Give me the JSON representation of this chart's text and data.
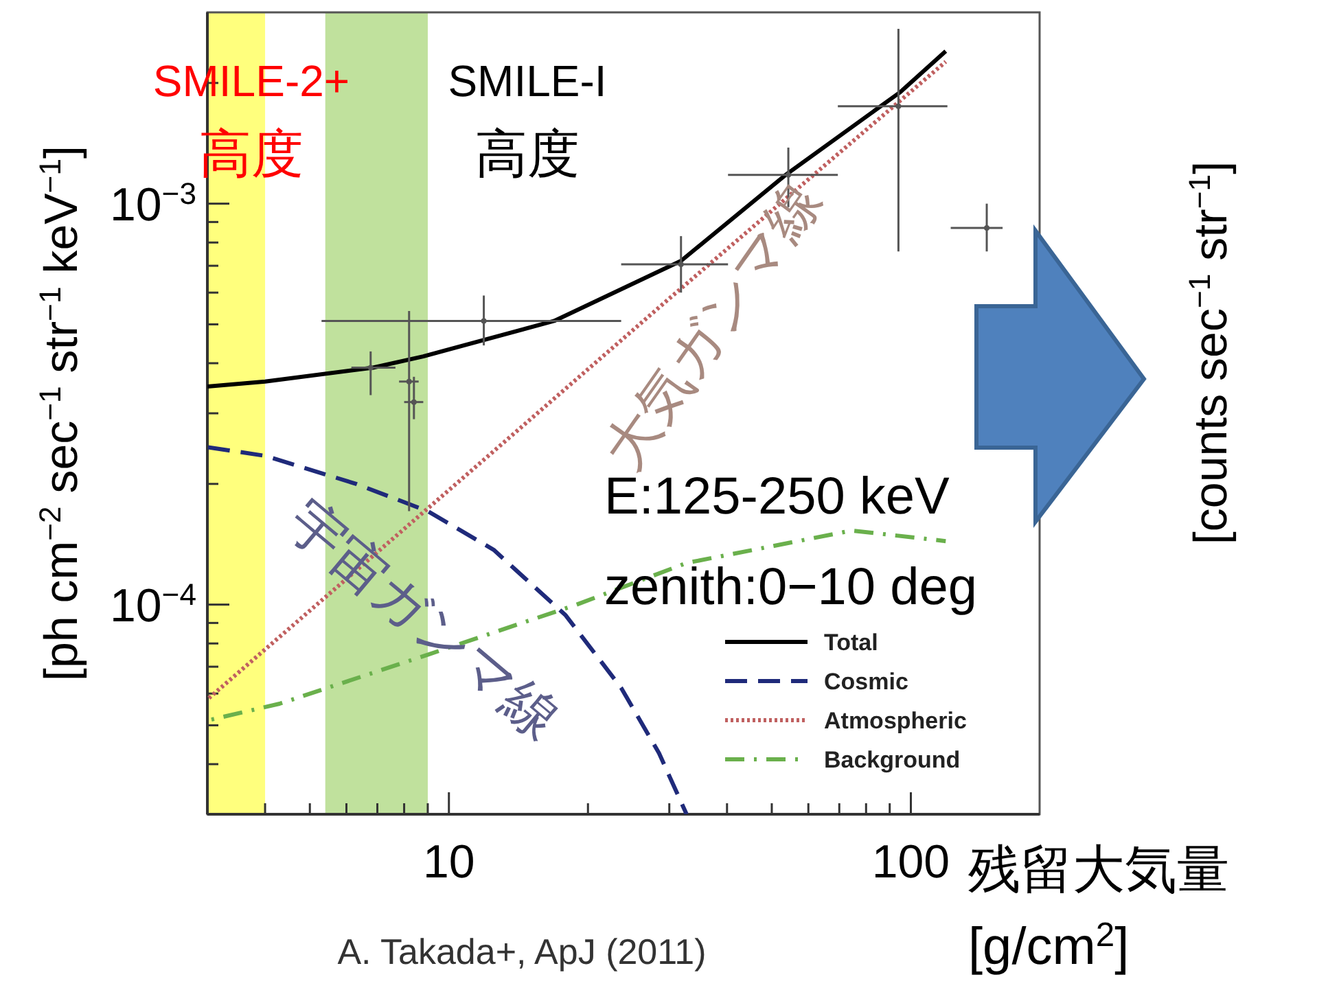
{
  "chart_data": [
    {
      "type": "line",
      "xlabel": "残留大気量 [g/cm$^{2}$]",
      "ylabel": "[ph cm$^{−2}$ sec$^{−1}$ str$^{−1}$ keV$^{−1}$]",
      "log": "xy",
      "xlim": [
        3,
        190
      ],
      "ylim": [
        3e-05,
        0.003
      ],
      "xticks": [
        {
          "value": 4,
          "label": null
        },
        {
          "value": 5,
          "label": null
        },
        {
          "value": 6,
          "label": null
        },
        {
          "value": 7,
          "label": null
        },
        {
          "value": 8,
          "label": null
        },
        {
          "value": 9,
          "label": null
        },
        10,
        {
          "value": 20,
          "label": null
        },
        {
          "value": 30,
          "label": null
        },
        {
          "value": 40,
          "label": null
        },
        {
          "value": 50,
          "label": null
        },
        {
          "value": 60,
          "label": null
        },
        {
          "value": 70,
          "label": null
        },
        {
          "value": 80,
          "label": null
        },
        {
          "value": 90,
          "label": null
        },
        100
      ],
      "yticks": [
        {
          "value": 4e-05,
          "label": null
        },
        {
          "value": 5e-05,
          "label": null
        },
        {
          "value": 6e-05,
          "label": null
        },
        {
          "value": 7e-05,
          "label": null
        },
        {
          "value": 8e-05,
          "label": null
        },
        {
          "value": 9e-05,
          "label": null
        },
        {
          "value": 0.0001,
          "label": "10$^{−4}$"
        },
        {
          "value": 0.0002,
          "label": null
        },
        {
          "value": 0.0003,
          "label": null
        },
        {
          "value": 0.0004,
          "label": null
        },
        {
          "value": 0.0005,
          "label": null
        },
        {
          "value": 0.0006,
          "label": null
        },
        {
          "value": 0.0007,
          "label": null
        },
        {
          "value": 0.0008,
          "label": null
        },
        {
          "value": 0.0009,
          "label": null
        },
        {
          "value": 0.001,
          "label": "10$^{−3}$"
        },
        {
          "value": 0.002,
          "label": null
        }
      ],
      "grid": false,
      "legend": "bottom right",
      "series": [
        {
          "name": "Total",
          "color": "#000000",
          "line_style": "solid",
          "x": [
            3,
            4,
            6.85,
            8.8,
            16.9,
            31.8,
            53.6,
            95,
            119
          ],
          "values": [
            0.00035,
            0.00036,
            0.00039,
            0.000416,
            0.00051,
            0.00072,
            0.00118,
            0.0019,
            0.0024
          ]
        },
        {
          "name": "Cosmic",
          "color": "#1f2a7a",
          "line_style": "dashed",
          "x": [
            3,
            4,
            6.3,
            9,
            12.5,
            17.9,
            23.6,
            28.5,
            32.7
          ],
          "values": [
            0.000247,
            0.000235,
            0.0002,
            0.000171,
            0.000137,
            9.4e-05,
            6.2e-05,
            4.26e-05,
            3e-05
          ]
        },
        {
          "name": "Atmospheric",
          "color": "#c06060",
          "line_style": "dotted",
          "x": [
            3,
            10,
            30,
            119
          ],
          "values": [
            5.8e-05,
            0.000193,
            0.00058,
            0.00226
          ]
        },
        {
          "name": "Background",
          "color": "#6ab04c",
          "line_style": "dashdot",
          "x": [
            3,
            4.3,
            9,
            18.9,
            32.7,
            74.5,
            119
          ],
          "values": [
            5.14e-05,
            5.66e-05,
            7.5e-05,
            0.0001,
            0.000127,
            0.000153,
            0.000144
          ]
        },
        {
          "type": "scatter",
          "marker": "circle",
          "color": "#555555",
          "x": [
            6.77,
            8.2,
            8.4,
            11.9,
            31.8,
            54.3,
            94,
            146
          ],
          "values": [
            0.00039,
            0.00036,
            0.00032,
            0.00051,
            0.000706,
            0.00118,
            0.00175,
            0.00087
          ],
          "errors": [
            [
              0.000333,
              0.000428
            ],
            [
              0.000171,
              0.00054
            ],
            [
              0.00029,
              0.00037
            ],
            [
              0.000443,
              0.00059
            ],
            [
              0.0006,
              0.00083
            ],
            [
              0.00098,
              0.00138
            ],
            [
              0.00076,
              0.00273
            ],
            [
              0.00076,
              0.001
            ]
          ],
          "xerrors": [
            [
              6.15,
              7.66
            ],
            [
              7.8,
              8.6
            ],
            [
              8.0,
              8.8
            ],
            [
              5.3,
              23.6
            ],
            [
              23.6,
              40.2
            ],
            [
              40.2,
              69.5
            ],
            [
              69.5,
              120
            ],
            [
              122,
              158
            ]
          ]
        }
      ],
      "bands": [
        {
          "axis": "x",
          "from": 3,
          "to": 4.0,
          "label": "SMILE-2+\n高度",
          "color": "#ffff66"
        },
        {
          "axis": "x",
          "from": 5.4,
          "to": 9.0,
          "label": "SMILE-I\n高度",
          "color": "#b5dc8c"
        }
      ],
      "annotations": [
        "大気ガンマ線",
        "宇宙ガンマ線",
        "E:125-250 keV",
        "zenith:0−10 deg",
        "A. Takada+, ApJ (2011)"
      ]
    },
    {
      "type": "other",
      "ylabel": "[counts sec$^{−1}$ str$^{−1}$]"
    }
  ]
}
